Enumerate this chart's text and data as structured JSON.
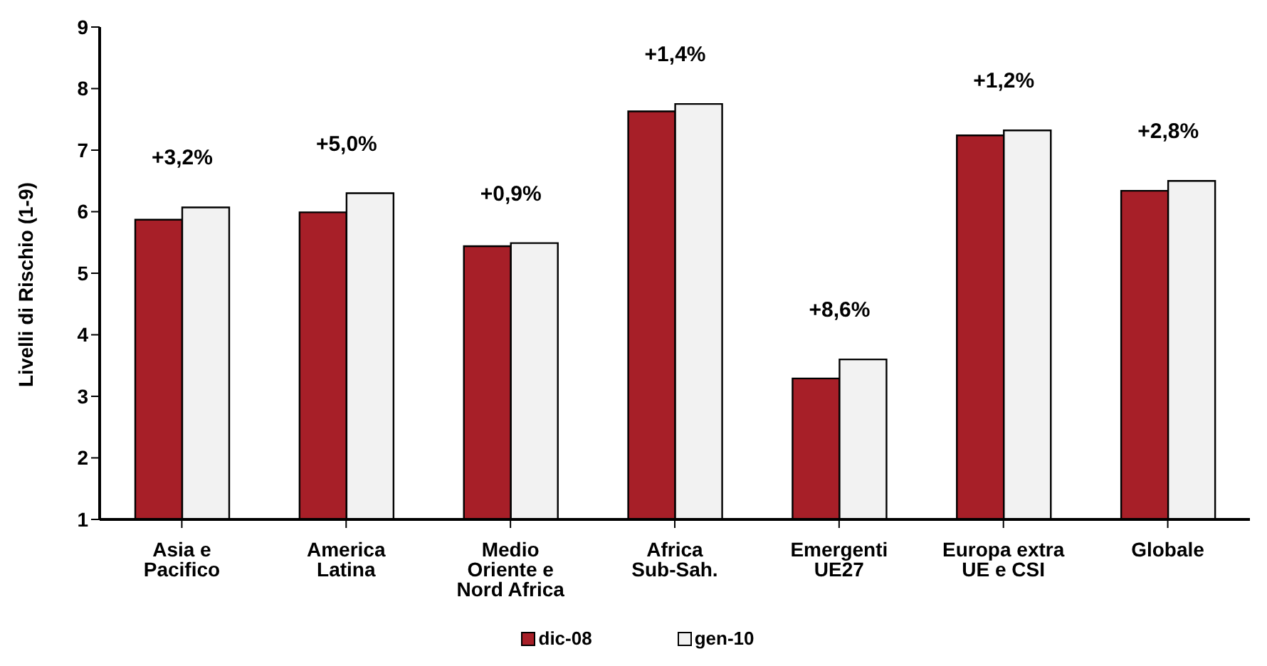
{
  "chart_data": {
    "type": "bar",
    "ylabel": "Livelli di Rischio (1-9)",
    "categories": [
      "Asia e Pacifico",
      "America Latina",
      "Medio Oriente e Nord Africa",
      "Africa Sub-Sah.",
      "Emergenti UE27",
      "Europa extra UE e CSI",
      "Globale"
    ],
    "series": [
      {
        "name": "dic-08",
        "color": "#a71f28",
        "values": [
          5.87,
          5.99,
          5.44,
          7.63,
          3.29,
          7.24,
          6.34
        ]
      },
      {
        "name": "gen-10",
        "color": "#f2f2f2",
        "values": [
          6.07,
          6.3,
          5.49,
          7.75,
          3.6,
          7.32,
          6.5
        ]
      }
    ],
    "ylim": [
      1,
      9
    ],
    "yticks": [
      1,
      2,
      3,
      4,
      5,
      6,
      7,
      8,
      9
    ],
    "grid": false,
    "legend": "bottom",
    "annotations": [
      "+3,2%",
      "+5,0%",
      "+0,9%",
      "+1,4%",
      "+8,6%",
      "+1,2%",
      "+2,8%"
    ]
  }
}
